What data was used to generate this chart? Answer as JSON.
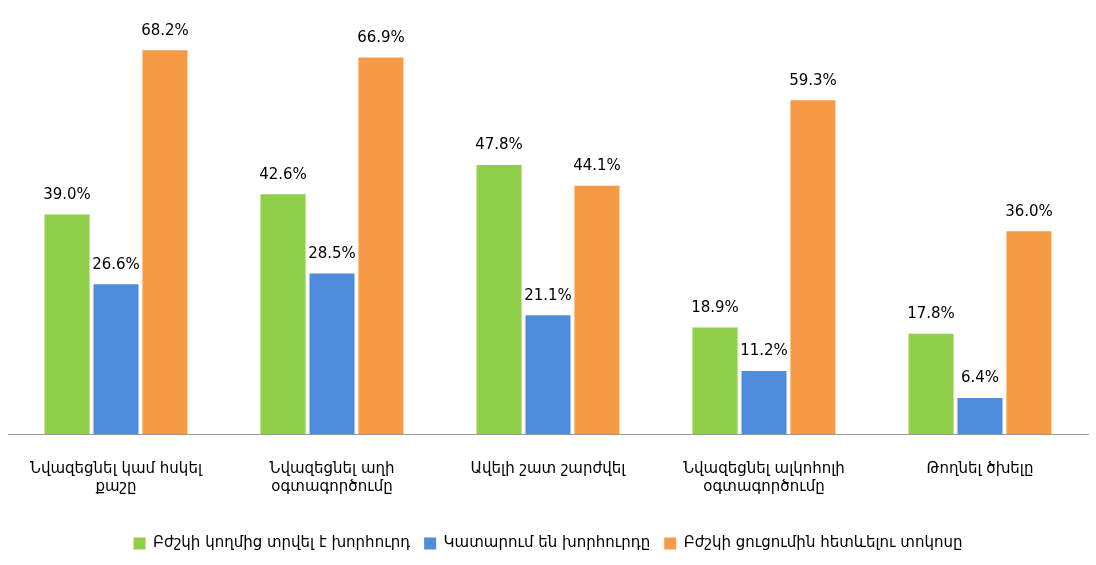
{
  "chart_data": {
    "type": "bar",
    "categories": [
      "Նվազեցնել կամ հսկել քաշը",
      "Նվազեցնել աղի օգտագործումը",
      "Ավելի շատ շարժվել",
      "Նվազեցնել ալկոհոլի օգտագործումը",
      "Թողնել ծխելը"
    ],
    "series": [
      {
        "name": "Բժշկի կողմից տրվել է խորհուրդ",
        "color": "#8fcf4a",
        "values": [
          39.0,
          42.6,
          47.8,
          18.9,
          17.8
        ],
        "value_labels": [
          "39.0%",
          "42.6%",
          "47.8%",
          "18.9%",
          "17.8%"
        ]
      },
      {
        "name": "Կատարում են խորհուրդը",
        "color": "#4f8ddb",
        "values": [
          26.6,
          28.5,
          21.1,
          11.2,
          6.4
        ],
        "value_labels": [
          "26.6%",
          "28.5%",
          "21.1%",
          "11.2%",
          "6.4%"
        ]
      },
      {
        "name": "Բժշկի ցուցումին հետևելու տոկոսը",
        "color": "#f79a46",
        "values": [
          68.2,
          66.9,
          44.1,
          59.3,
          36.0
        ],
        "value_labels": [
          "68.2%",
          "66.9%",
          "44.1%",
          "59.3%",
          "36.0%"
        ]
      }
    ],
    "legend": "bottom",
    "grid": false
  }
}
